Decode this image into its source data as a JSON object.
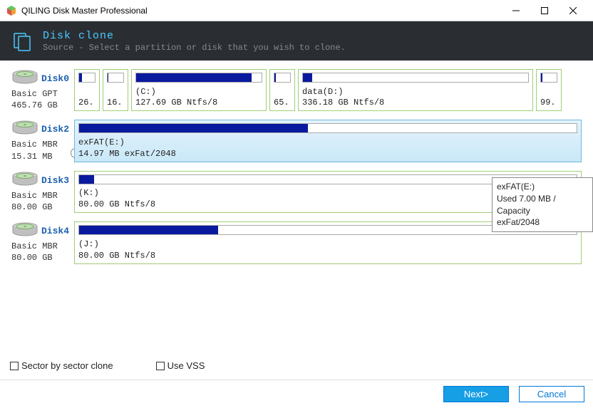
{
  "window": {
    "title": "QILING Disk Master Professional"
  },
  "header": {
    "title": "Disk clone",
    "subtitle": "Source - Select a partition or disk that you wish to clone."
  },
  "disks": [
    {
      "name": "Disk0",
      "type": "Basic GPT",
      "size": "465.76 GB",
      "selected": false,
      "parts": [
        {
          "label": "",
          "info": "26...",
          "fill": 20,
          "flex": 36
        },
        {
          "label": "",
          "info": "16...",
          "fill": 6,
          "flex": 36
        },
        {
          "label": "(C:)",
          "info": "127.69 GB Ntfs/8",
          "fill": 92,
          "flex": 190
        },
        {
          "label": "",
          "info": "65...",
          "fill": 8,
          "flex": 36
        },
        {
          "label": "data(D:)",
          "info": "336.18 GB Ntfs/8",
          "fill": 4,
          "flex": 330
        },
        {
          "label": "",
          "info": "99...",
          "fill": 10,
          "flex": 36
        }
      ]
    },
    {
      "name": "Disk2",
      "type": "Basic MBR",
      "size": "15.31 MB",
      "selected": true,
      "parts": [
        {
          "label": "exFAT(E:)",
          "info": "14.97 MB exFat/2048",
          "fill": 46,
          "flex": 1,
          "selected": true
        }
      ]
    },
    {
      "name": "Disk3",
      "type": "Basic MBR",
      "size": "80.00 GB",
      "selected": false,
      "parts": [
        {
          "label": "(K:)",
          "info": "80.00 GB Ntfs/8",
          "fill": 3,
          "flex": 1
        }
      ]
    },
    {
      "name": "Disk4",
      "type": "Basic MBR",
      "size": "80.00 GB",
      "selected": false,
      "parts": [
        {
          "label": "(J:)",
          "info": "80.00 GB Ntfs/8",
          "fill": 28,
          "flex": 1
        }
      ]
    }
  ],
  "tooltip": {
    "line1": "exFAT(E:)",
    "line2": "Used 7.00 MB / Capacity",
    "line3": "exFat/2048"
  },
  "checks": {
    "sector": "Sector by sector clone",
    "vss": "Use VSS"
  },
  "buttons": {
    "next": "Next>",
    "cancel": "Cancel"
  },
  "colors": {
    "fill": "#0a1a9e",
    "partBorder": "#9fce76",
    "selBg1": "#e4f3fc",
    "selBg2": "#c9e8f8"
  }
}
